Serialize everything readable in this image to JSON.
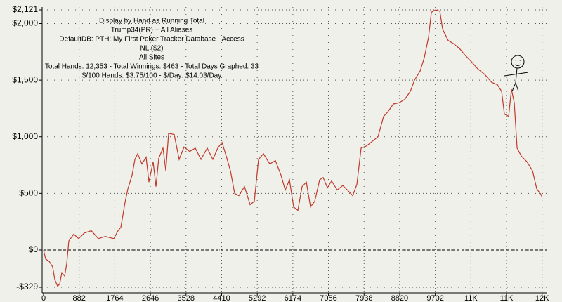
{
  "chart_data": {
    "type": "line",
    "annotation_lines": [
      "Display by Hand as Running Total",
      "Trump34(PR) + All Aliases",
      "DefaultDB: PTH: My First Poker Tracker Database  - Access",
      "NL ($2)",
      "All Sites",
      "Total Hands: 12,353 - Total Winnings: $463 - Total Days Graphed: 33",
      "$/100 Hands: $3.75/100 - $/Day: $14.03/Day"
    ],
    "x": [
      0,
      52,
      139,
      226,
      278,
      348,
      400,
      452,
      522,
      574,
      626,
      748,
      870,
      1009,
      1183,
      1357,
      1531,
      1740,
      1844,
      1914,
      2018,
      2088,
      2192,
      2262,
      2331,
      2436,
      2540,
      2610,
      2714,
      2784,
      2853,
      2958,
      3028,
      3097,
      3236,
      3358,
      3480,
      3619,
      3758,
      3898,
      4054,
      4193,
      4315,
      4420,
      4524,
      4628,
      4733,
      4837,
      4976,
      5116,
      5220,
      5324,
      5446,
      5603,
      5742,
      5881,
      5986,
      6090,
      6194,
      6299,
      6403,
      6508,
      6612,
      6716,
      6838,
      6925,
      7030,
      7134,
      7273,
      7412,
      7552,
      7656,
      7760,
      7865,
      8004,
      8143,
      8282,
      8422,
      8526,
      8665,
      8804,
      8944,
      9083,
      9187,
      9326,
      9431,
      9535,
      9605,
      9709,
      9814,
      9883,
      10022,
      10162,
      10301,
      10440,
      10579,
      10753,
      10927,
      11101,
      11240,
      11345,
      11414,
      11519,
      11588,
      11658,
      11728,
      11832,
      11971,
      12110,
      12215,
      12319,
      12353
    ],
    "series": [
      {
        "name": "Running Total",
        "color": "#c0392b",
        "values": [
          0,
          -80,
          -100,
          -150,
          -260,
          -320,
          -300,
          -200,
          -230,
          -120,
          80,
          140,
          100,
          150,
          170,
          100,
          120,
          100,
          170,
          200,
          420,
          540,
          660,
          800,
          850,
          760,
          820,
          600,
          780,
          560,
          810,
          900,
          700,
          1030,
          1020,
          800,
          910,
          870,
          900,
          800,
          900,
          800,
          900,
          950,
          830,
          700,
          500,
          480,
          560,
          400,
          430,
          800,
          850,
          760,
          790,
          660,
          530,
          620,
          380,
          350,
          560,
          600,
          380,
          430,
          620,
          640,
          550,
          610,
          530,
          570,
          520,
          480,
          580,
          900,
          920,
          960,
          1000,
          1180,
          1220,
          1290,
          1300,
          1330,
          1400,
          1500,
          1580,
          1700,
          1880,
          2100,
          2121,
          2110,
          1950,
          1850,
          1820,
          1780,
          1720,
          1670,
          1600,
          1550,
          1480,
          1460,
          1400,
          1200,
          1180,
          1420,
          1300,
          900,
          830,
          780,
          700,
          540,
          490,
          463
        ]
      }
    ],
    "xlim": [
      0,
      12353
    ],
    "xticks": [
      0,
      882,
      1764,
      2646,
      3528,
      4410,
      5292,
      6174,
      7056,
      7938,
      8820,
      9702,
      {
        "value": 10584,
        "label": "11K"
      },
      {
        "value": 11466,
        "label": "11K"
      },
      {
        "value": 12348,
        "label": "12K"
      }
    ],
    "ylim": [
      -329,
      2121
    ],
    "yticks": [
      {
        "value": 2121,
        "label": "$2,121"
      },
      {
        "value": 2000,
        "label": "$2,000"
      },
      {
        "value": 1500,
        "label": "$1,500"
      },
      {
        "value": 1000,
        "label": "$1,000"
      },
      {
        "value": 500,
        "label": "$500"
      },
      {
        "value": 0,
        "label": "$0"
      },
      {
        "value": -329,
        "label": "-$329"
      }
    ],
    "grid": true
  }
}
